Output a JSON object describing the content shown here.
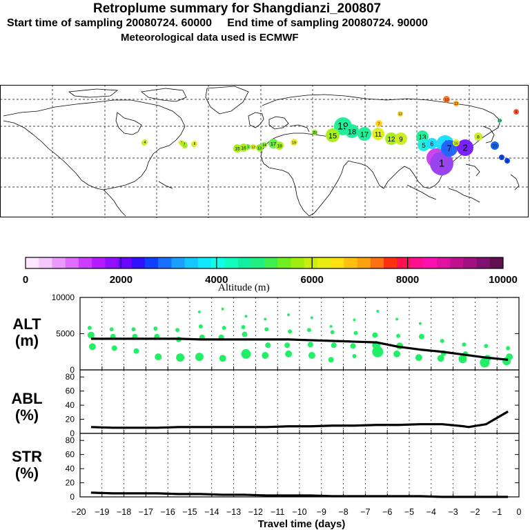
{
  "header": {
    "title": "Retroplume summary for Shangdianzi_200807",
    "line2": "Start time of sampling 20080724. 60000     End time of sampling 20080724. 90000",
    "line3": "Meteorological data used is ECMWF"
  },
  "colorbar": {
    "colors": [
      "#ffe6ff",
      "#f6c6ff",
      "#ea9aff",
      "#dd6cff",
      "#cc3cff",
      "#b41cff",
      "#9010ff",
      "#6a06ff",
      "#3010ff",
      "#1040ff",
      "#1870ff",
      "#1aa0ff",
      "#14c8ff",
      "#10e8ff",
      "#10ffe8",
      "#10ffc0",
      "#10f0a0",
      "#20ee80",
      "#40ee50",
      "#70ee20",
      "#a0ee10",
      "#c8ee10",
      "#e8ee10",
      "#ffe010",
      "#ffc010",
      "#ffa010",
      "#ff7010",
      "#ff3010",
      "#ff1050",
      "#ff1090",
      "#ff10b0",
      "#e010a0",
      "#c01090",
      "#a01080",
      "#801070",
      "#601050"
    ],
    "ticks": [
      "0",
      "2000",
      "4000",
      "6000",
      "8000",
      "10000"
    ],
    "label": "Altitude (m)"
  },
  "map": {
    "clusters": [
      {
        "n": "1",
        "c": "#aaee22",
        "r": 4
      },
      {
        "n": "2",
        "c": "#ddee22",
        "r": 4
      },
      {
        "n": "3",
        "c": "#aaee22",
        "r": 4
      },
      {
        "n": "4",
        "c": "#ccee22",
        "r": 4
      },
      {
        "n": "5",
        "c": "#aaee22",
        "r": 4
      },
      {
        "n": "6",
        "c": "#aaee22",
        "r": 4
      },
      {
        "n": "7",
        "c": "#aaee22",
        "r": 4
      },
      {
        "n": "8",
        "c": "#eeee22",
        "r": 4
      },
      {
        "n": "9",
        "c": "#66ee44",
        "r": 4
      },
      {
        "n": "10",
        "c": "#22ee88",
        "r": 4
      },
      {
        "n": "11",
        "c": "#aaee22",
        "r": 4
      },
      {
        "n": "12",
        "c": "#eeee22",
        "r": 4
      },
      {
        "n": "13",
        "c": "#88ee22",
        "r": 5
      },
      {
        "n": "14",
        "c": "#88ee22",
        "r": 4
      },
      {
        "n": "15",
        "c": "#aaee22",
        "r": 6
      },
      {
        "n": "16",
        "c": "#aaee22",
        "r": 6
      },
      {
        "n": "17",
        "c": "#66ee44",
        "r": 7
      },
      {
        "n": "18",
        "c": "#aaee22",
        "r": 6
      },
      {
        "n": "19",
        "c": "#eeee22",
        "r": 5
      },
      {
        "n": "20",
        "c": "#88ee22",
        "r": 4
      },
      {
        "n": "19",
        "c": "#22ee99",
        "r": 13
      },
      {
        "n": "18",
        "c": "#22ee99",
        "r": 10
      },
      {
        "n": "15",
        "c": "#aaee22",
        "r": 10
      },
      {
        "n": "17",
        "c": "#22ee99",
        "r": 10
      },
      {
        "n": "11",
        "c": "#ddee22",
        "r": 9
      },
      {
        "n": "12",
        "c": "#aaee22",
        "r": 9
      },
      {
        "n": "9",
        "c": "#ccee22",
        "r": 9
      },
      {
        "n": "7",
        "c": "#ffcc22",
        "r": 5
      },
      {
        "n": "13",
        "c": "#22ee99",
        "r": 9
      },
      {
        "n": "4",
        "c": "#22ddff",
        "r": 13
      },
      {
        "n": "5",
        "c": "#22eedd",
        "r": 9
      },
      {
        "n": "6",
        "c": "#22ddff",
        "r": 8
      },
      {
        "n": "8",
        "c": "#ccee22",
        "r": 6
      },
      {
        "n": "3",
        "c": "#cc44ee",
        "r": 14
      },
      {
        "n": "1",
        "c": "#9944ee",
        "r": 17
      },
      {
        "n": "7",
        "c": "#2266ff",
        "r": 12
      },
      {
        "n": "2",
        "c": "#7722ff",
        "r": 12
      },
      {
        "n": "16",
        "c": "#ddee22",
        "r": 5
      },
      {
        "n": "12",
        "c": "#ffdd22",
        "r": 4
      },
      {
        "n": "10",
        "c": "#ff7722",
        "r": 5
      },
      {
        "n": "13",
        "c": "#ffaa22",
        "r": 4
      },
      {
        "n": "6",
        "c": "#ff5533",
        "r": 4
      },
      {
        "n": "19",
        "c": "#22ee88",
        "r": 3
      },
      {
        "n": "20",
        "c": "#1166ee",
        "r": 6
      },
      {
        "n": "1",
        "c": "#1144ee",
        "r": 4
      },
      {
        "n": "2",
        "c": "#1144ee",
        "r": 4
      }
    ]
  },
  "panels": {
    "alt": {
      "label": "ALT\n(m)",
      "yticks": [
        "10000",
        "5000",
        "0"
      ]
    },
    "abl": {
      "label": "ABL\n(%)",
      "yticks": [
        "80",
        "60",
        "40",
        "20",
        "0"
      ]
    },
    "str": {
      "label": "STR\n(%)",
      "yticks": [
        "80",
        "60",
        "40",
        "20",
        "0"
      ]
    }
  },
  "chart_data": [
    {
      "type": "line",
      "title": "ALT (m)",
      "ylabel": "ALT (m)",
      "xlabel": "Travel time (days)",
      "ylim": [
        0,
        10000
      ],
      "x": [
        -19.5,
        -18.5,
        -17.5,
        -16.5,
        -15.5,
        -14.5,
        -13.5,
        -12.5,
        -11.5,
        -10.5,
        -9.5,
        -8.5,
        -7.5,
        -6.5,
        -5.5,
        -4.5,
        -3.5,
        -2.5,
        -1.5,
        -0.5
      ],
      "values": [
        4300,
        4300,
        4300,
        4300,
        4300,
        4200,
        4200,
        4200,
        4200,
        4200,
        4100,
        4000,
        3900,
        3800,
        3200,
        2800,
        2500,
        2100,
        1700,
        1400
      ],
      "scatter": {
        "x": [
          -19.5,
          -19.5,
          -19.5,
          -18.5,
          -18.5,
          -18.5,
          -17.5,
          -17.5,
          -17.5,
          -16.5,
          -16.5,
          -16.5,
          -15.5,
          -15.5,
          -15.5,
          -14.5,
          -14.5,
          -14.5,
          -14.5,
          -13.5,
          -13.5,
          -13.5,
          -13.5,
          -12.5,
          -12.5,
          -12.5,
          -12.5,
          -11.5,
          -11.5,
          -11.5,
          -11.5,
          -10.5,
          -10.5,
          -10.5,
          -10.5,
          -9.5,
          -9.5,
          -9.5,
          -9.5,
          -8.5,
          -8.5,
          -8.5,
          -8.5,
          -7.5,
          -7.5,
          -7.5,
          -7.5,
          -6.5,
          -6.5,
          -6.5,
          -6.5,
          -5.5,
          -5.5,
          -5.5,
          -5.5,
          -4.5,
          -4.5,
          -4.5,
          -3.5,
          -3.5,
          -3.5,
          -2.5,
          -2.5,
          -2.5,
          -1.5,
          -1.5,
          -1.5,
          -0.5,
          -0.5,
          -0.5
        ],
        "y": [
          5800,
          4800,
          3200,
          5600,
          4600,
          3000,
          5600,
          4600,
          2600,
          5700,
          4600,
          1800,
          5500,
          4200,
          1700,
          8000,
          6000,
          4500,
          1800,
          8400,
          5800,
          4500,
          1600,
          7400,
          5900,
          4900,
          2200,
          7000,
          5600,
          3400,
          2000,
          7600,
          5300,
          3400,
          2200,
          7200,
          5500,
          3500,
          2000,
          6000,
          5200,
          3400,
          1400,
          6900,
          5100,
          3300,
          1900,
          8100,
          4800,
          3400,
          2500,
          7000,
          4700,
          3300,
          2200,
          6400,
          4600,
          1700,
          4000,
          2300,
          1600,
          3500,
          2200,
          1500,
          3300,
          1600,
          1000,
          3000,
          1800,
          1200
        ],
        "s": [
          3,
          5,
          5,
          3,
          4,
          4,
          3,
          4,
          4,
          3,
          4,
          5,
          3,
          4,
          6,
          2,
          3,
          4,
          6,
          2,
          3,
          4,
          5,
          2,
          3,
          4,
          7,
          2,
          3,
          4,
          5,
          2,
          3,
          4,
          5,
          2,
          3,
          4,
          5,
          2,
          3,
          4,
          4,
          2,
          3,
          4,
          3,
          2,
          4,
          6,
          8,
          2,
          3,
          5,
          5,
          2,
          4,
          5,
          3,
          4,
          5,
          3,
          4,
          6,
          3,
          5,
          7,
          3,
          5,
          6
        ]
      }
    },
    {
      "type": "line",
      "title": "ABL (%)",
      "ylabel": "ABL (%)",
      "ylim": [
        0,
        90
      ],
      "x": [
        -19.5,
        -18.5,
        -17.5,
        -16.5,
        -15.5,
        -14.5,
        -13.5,
        -12.5,
        -11.5,
        -10.5,
        -9.5,
        -8.5,
        -7.5,
        -6.5,
        -5.5,
        -4.5,
        -3.5,
        -2.5,
        -2.3,
        -1.5,
        -0.5
      ],
      "values": [
        9,
        8,
        8,
        8,
        9,
        9,
        9,
        9,
        9,
        10,
        10,
        11,
        11,
        12,
        12,
        13,
        13,
        10,
        9,
        13,
        31
      ]
    },
    {
      "type": "line",
      "title": "STR (%)",
      "ylabel": "STR (%)",
      "ylim": [
        0,
        90
      ],
      "x": [
        -19.5,
        -18.5,
        -17.5,
        -16.5,
        -15.5,
        -14.5,
        -13.5,
        -12.5,
        -11.5,
        -10.5,
        -9.5,
        -8.5,
        -7.5,
        -6.5,
        -5.5,
        -4.5,
        -3.5,
        -2.5,
        -1.5,
        -0.5
      ],
      "values": [
        6,
        5,
        5,
        5,
        4,
        4,
        3,
        3,
        2,
        2,
        2,
        1,
        1,
        1,
        1,
        1,
        0,
        0,
        0,
        0
      ],
      "xticks": [
        "−20",
        "−19",
        "−18",
        "−17",
        "−16",
        "−15",
        "−14",
        "−13",
        "−12",
        "−11",
        "−10",
        "−9",
        "−8",
        "−7",
        "−6",
        "−5",
        "−4",
        "−3",
        "−2",
        "−1",
        "0"
      ]
    }
  ]
}
